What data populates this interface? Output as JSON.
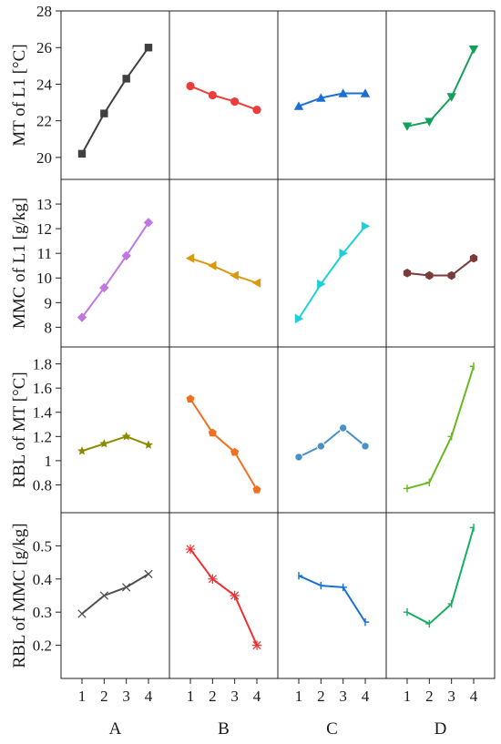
{
  "chart_data": {
    "type": "line",
    "x_ticks": [
      "1",
      "2",
      "3",
      "4"
    ],
    "columns": [
      "A",
      "B",
      "C",
      "D"
    ],
    "rows": [
      {
        "ylabel": "MT of L1 [°C]",
        "ylim": [
          18.8,
          28
        ],
        "yticks": [
          20,
          22,
          24,
          26,
          28
        ],
        "ytick_labels": [
          "20",
          "22",
          "24",
          "26",
          "28"
        ],
        "series": [
          {
            "column": "A",
            "color": "#404040",
            "marker": "square",
            "values": [
              20.2,
              22.4,
              24.3,
              26.0
            ]
          },
          {
            "column": "B",
            "color": "#ee3b3b",
            "marker": "circle",
            "values": [
              23.9,
              23.4,
              23.05,
              22.6
            ]
          },
          {
            "column": "C",
            "color": "#1a6fd6",
            "marker": "triangle-up",
            "values": [
              22.8,
              23.25,
              23.5,
              23.5
            ]
          },
          {
            "column": "D",
            "color": "#14a05a",
            "marker": "triangle-down",
            "values": [
              21.7,
              21.95,
              23.3,
              25.9
            ]
          }
        ]
      },
      {
        "ylabel": "MMC of L1 [g/kg]",
        "ylim": [
          7.2,
          14
        ],
        "yticks": [
          8,
          9,
          10,
          11,
          12,
          13
        ],
        "ytick_labels": [
          "8",
          "9",
          "10",
          "11",
          "12",
          "13"
        ],
        "series": [
          {
            "column": "A",
            "color": "#c078e0",
            "marker": "diamond",
            "values": [
              8.4,
              9.6,
              10.9,
              12.25
            ]
          },
          {
            "column": "B",
            "color": "#d99a10",
            "marker": "triangle-left",
            "values": [
              10.8,
              10.5,
              10.1,
              9.8
            ]
          },
          {
            "column": "C",
            "color": "#1dd0d8",
            "marker": "triangle-right",
            "values": [
              8.35,
              9.75,
              11.0,
              12.1
            ]
          },
          {
            "column": "D",
            "color": "#7a3b3b",
            "marker": "hexagon",
            "values": [
              10.2,
              10.1,
              10.1,
              10.8
            ]
          }
        ]
      },
      {
        "ylabel": "RBL of MT [°C]",
        "ylim": [
          0.57,
          1.94
        ],
        "yticks": [
          0.8,
          1.0,
          1.2,
          1.4,
          1.6,
          1.8
        ],
        "ytick_labels": [
          "0.8",
          "1",
          "1.2",
          "1.4",
          "1.6",
          "1.8"
        ],
        "series": [
          {
            "column": "A",
            "color": "#8a8a00",
            "marker": "star",
            "values": [
              1.08,
              1.14,
              1.2,
              1.13
            ]
          },
          {
            "column": "B",
            "color": "#f07020",
            "marker": "pentagon",
            "values": [
              1.51,
              1.23,
              1.07,
              0.76
            ]
          },
          {
            "column": "C",
            "color": "#4a90c8",
            "marker": "sphere",
            "values": [
              1.03,
              1.12,
              1.27,
              1.12
            ]
          },
          {
            "column": "D",
            "color": "#6ab820",
            "marker": "tick-left",
            "values": [
              0.77,
              0.82,
              1.2,
              1.78
            ]
          }
        ]
      },
      {
        "ylabel": "RBL of MMC [g/kg]",
        "ylim": [
          0.1,
          0.6
        ],
        "yticks": [
          0.2,
          0.3,
          0.4,
          0.5
        ],
        "ytick_labels": [
          "0.2",
          "0.3",
          "0.4",
          "0.5"
        ],
        "series": [
          {
            "column": "A",
            "color": "#505050",
            "marker": "x",
            "values": [
              0.295,
              0.35,
              0.375,
              0.415
            ]
          },
          {
            "column": "B",
            "color": "#ee3030",
            "marker": "asterisk",
            "values": [
              0.49,
              0.4,
              0.35,
              0.2
            ]
          },
          {
            "column": "C",
            "color": "#1a6fd6",
            "marker": "tick-right",
            "values": [
              0.41,
              0.38,
              0.375,
              0.27
            ]
          },
          {
            "column": "D",
            "color": "#14b060",
            "marker": "tick-left",
            "values": [
              0.3,
              0.265,
              0.325,
              0.555
            ]
          }
        ]
      }
    ]
  }
}
